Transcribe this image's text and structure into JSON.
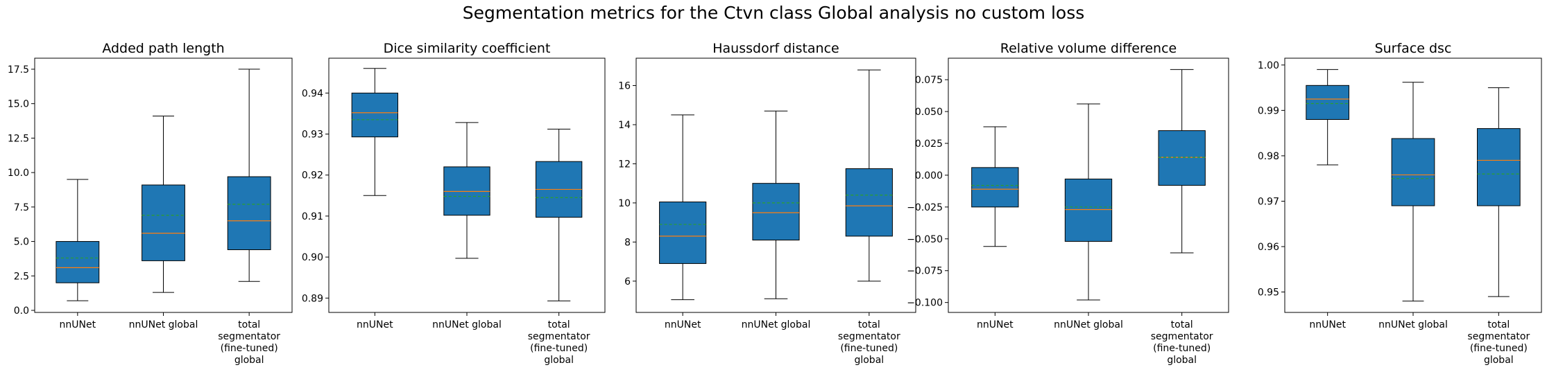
{
  "suptitle": "Segmentation metrics for the Ctvn class Global analysis no custom loss",
  "colors": {
    "box_fill": "#1f77b4",
    "median": "#ff7f0e",
    "mean": "#2ca02c",
    "whisker": "#000000"
  },
  "chart_data": [
    {
      "type": "box",
      "title": "Added path length",
      "categories": [
        "nnUNet",
        "nnUNet global",
        [
          "total",
          "segmentator",
          "(fine-tuned)",
          "global"
        ]
      ],
      "ylim": [
        -0.15,
        18.3
      ],
      "yticks": [
        0.0,
        2.5,
        5.0,
        7.5,
        10.0,
        12.5,
        15.0,
        17.5
      ],
      "ytick_labels": [
        "0.0",
        "2.5",
        "5.0",
        "7.5",
        "10.0",
        "12.5",
        "15.0",
        "17.5"
      ],
      "boxes": [
        {
          "whislo": 0.7,
          "q1": 2.0,
          "med": 3.1,
          "mean": 3.8,
          "q3": 5.0,
          "whishi": 9.5
        },
        {
          "whislo": 1.3,
          "q1": 3.6,
          "med": 5.6,
          "mean": 6.9,
          "q3": 9.1,
          "whishi": 14.1
        },
        {
          "whislo": 2.1,
          "q1": 4.4,
          "med": 6.5,
          "mean": 7.7,
          "q3": 9.7,
          "whishi": 17.5
        }
      ]
    },
    {
      "type": "box",
      "title": "Dice similarity coefficient",
      "categories": [
        "nnUNet",
        "nnUNet global",
        [
          "total",
          "segmentator",
          "(fine-tuned)",
          "global"
        ]
      ],
      "ylim": [
        0.8865,
        0.9485
      ],
      "yticks": [
        0.89,
        0.9,
        0.91,
        0.92,
        0.93,
        0.94
      ],
      "ytick_labels": [
        "0.89",
        "0.90",
        "0.91",
        "0.92",
        "0.93",
        "0.94"
      ],
      "boxes": [
        {
          "whislo": 0.915,
          "q1": 0.9293,
          "med": 0.9352,
          "mean": 0.9335,
          "q3": 0.94,
          "whishi": 0.946
        },
        {
          "whislo": 0.8997,
          "q1": 0.9102,
          "med": 0.916,
          "mean": 0.9148,
          "q3": 0.922,
          "whishi": 0.9328
        },
        {
          "whislo": 0.8893,
          "q1": 0.9097,
          "med": 0.9165,
          "mean": 0.9145,
          "q3": 0.9233,
          "whishi": 0.9312
        }
      ]
    },
    {
      "type": "box",
      "title": "Haussdorf distance",
      "categories": [
        "nnUNet",
        "nnUNet global",
        [
          "total",
          "segmentator",
          "(fine-tuned)",
          "global"
        ]
      ],
      "ylim": [
        4.4,
        17.4
      ],
      "yticks": [
        6,
        8,
        10,
        12,
        14,
        16
      ],
      "ytick_labels": [
        "6",
        "8",
        "10",
        "12",
        "14",
        "16"
      ],
      "boxes": [
        {
          "whislo": 5.05,
          "q1": 6.9,
          "med": 8.3,
          "mean": 8.9,
          "q3": 10.05,
          "whishi": 14.5
        },
        {
          "whislo": 5.1,
          "q1": 8.1,
          "med": 9.5,
          "mean": 10.0,
          "q3": 11.0,
          "whishi": 14.7
        },
        {
          "whislo": 6.0,
          "q1": 8.3,
          "med": 9.85,
          "mean": 10.4,
          "q3": 11.75,
          "whishi": 16.8
        }
      ]
    },
    {
      "type": "box",
      "title": "Relative volume difference",
      "categories": [
        "nnUNet",
        "nnUNet global",
        [
          "total",
          "segmentator",
          "(fine-tuned)",
          "global"
        ]
      ],
      "ylim": [
        -0.1078,
        0.0919
      ],
      "yticks": [
        -0.1,
        -0.075,
        -0.05,
        -0.025,
        0.0,
        0.025,
        0.05,
        0.075
      ],
      "ytick_labels": [
        "−0.100",
        "−0.075",
        "−0.050",
        "−0.025",
        "0.000",
        "0.025",
        "0.050",
        "0.075"
      ],
      "boxes": [
        {
          "whislo": -0.056,
          "q1": -0.025,
          "med": -0.011,
          "mean": -0.008,
          "q3": 0.006,
          "whishi": 0.038
        },
        {
          "whislo": -0.098,
          "q1": -0.052,
          "med": -0.027,
          "mean": -0.025,
          "q3": -0.003,
          "whishi": 0.056
        },
        {
          "whislo": -0.061,
          "q1": -0.008,
          "med": 0.014,
          "mean": 0.014,
          "q3": 0.035,
          "whishi": 0.083
        }
      ]
    },
    {
      "type": "box",
      "title": "Surface dsc",
      "categories": [
        "nnUNet",
        "nnUNet global",
        [
          "total",
          "segmentator",
          "(fine-tuned)",
          "global"
        ]
      ],
      "ylim": [
        0.9455,
        1.0015
      ],
      "yticks": [
        0.95,
        0.96,
        0.97,
        0.98,
        0.99,
        1.0
      ],
      "ytick_labels": [
        "0.95",
        "0.96",
        "0.97",
        "0.98",
        "0.99",
        "1.00"
      ],
      "boxes": [
        {
          "whislo": 0.978,
          "q1": 0.988,
          "med": 0.9925,
          "mean": 0.9915,
          "q3": 0.9955,
          "whishi": 0.999
        },
        {
          "whislo": 0.948,
          "q1": 0.969,
          "med": 0.9758,
          "mean": 0.975,
          "q3": 0.9838,
          "whishi": 0.9962
        },
        {
          "whislo": 0.949,
          "q1": 0.969,
          "med": 0.979,
          "mean": 0.976,
          "q3": 0.986,
          "whishi": 0.995
        }
      ]
    }
  ]
}
